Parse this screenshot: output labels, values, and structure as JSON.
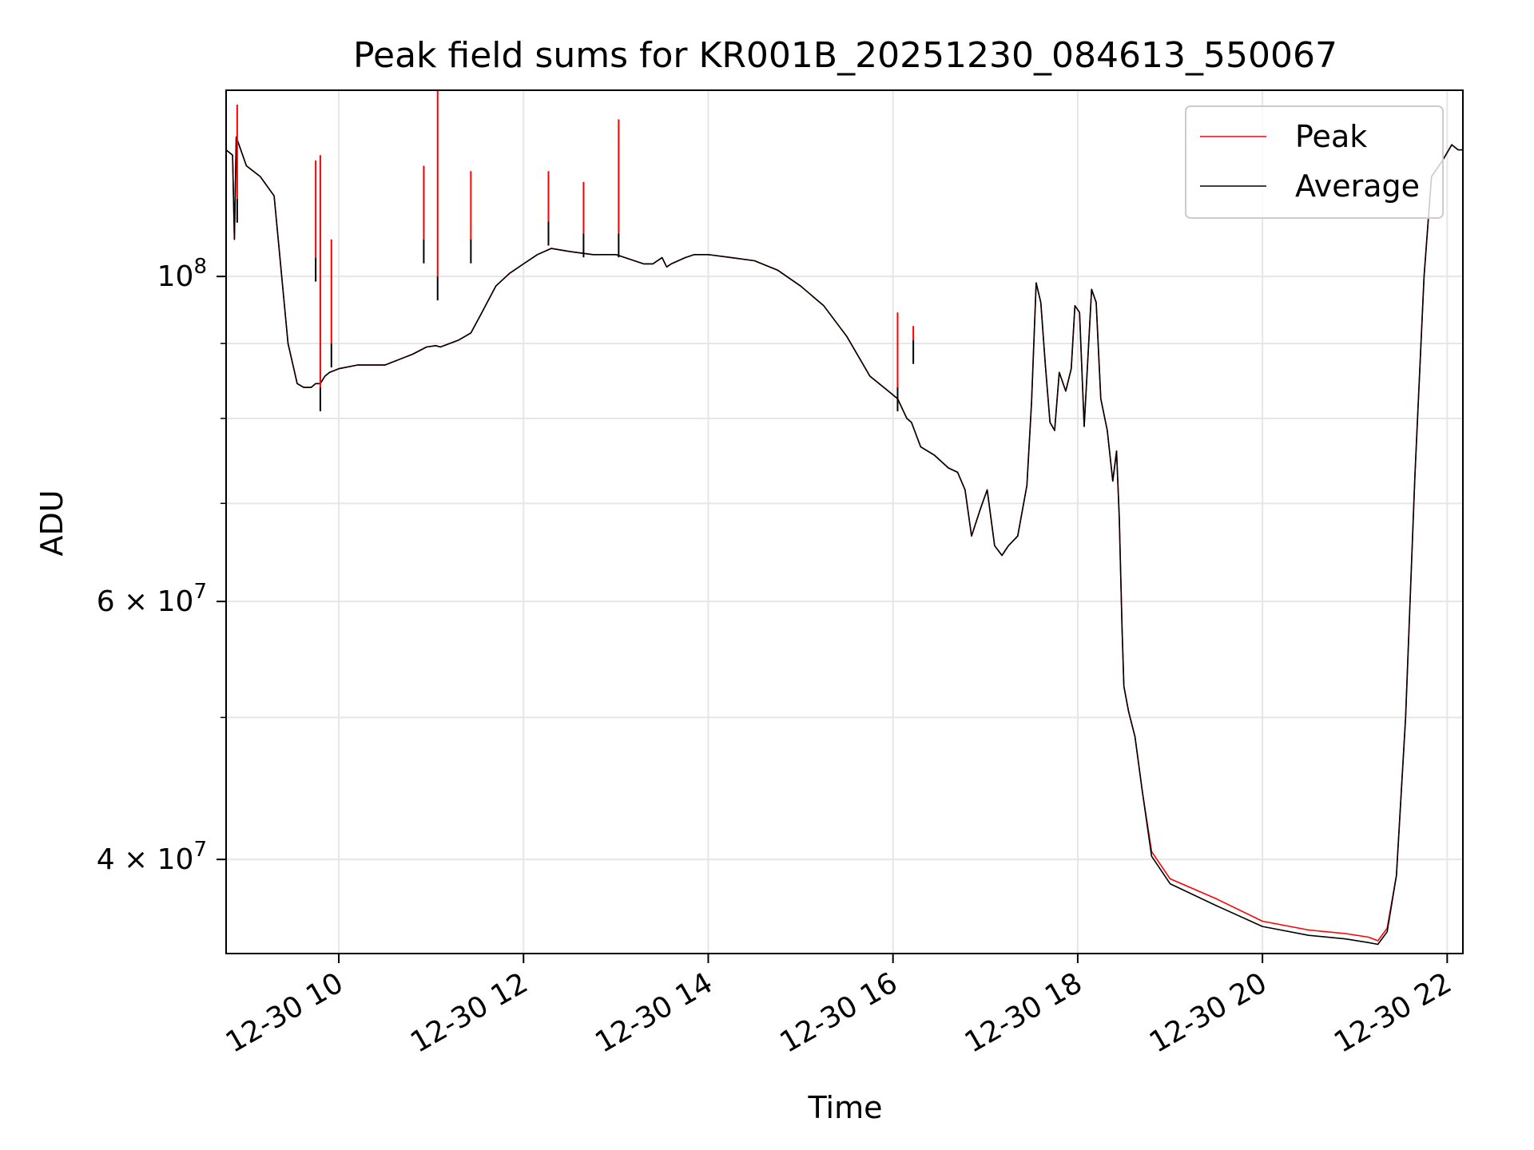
{
  "chart_data": {
    "type": "line",
    "title": "Peak field sums for KR001B_20251230_084613_550067",
    "xlabel": "Time",
    "ylabel": "ADU",
    "yscale": "log",
    "xlim_hours": [
      8.78,
      22.17
    ],
    "ylim": [
      34500000,
      134000000
    ],
    "grid": true,
    "legend_position": "upper right",
    "x_ticks": [
      {
        "hour": 10,
        "label": "12-30 10"
      },
      {
        "hour": 12,
        "label": "12-30 12"
      },
      {
        "hour": 14,
        "label": "12-30 14"
      },
      {
        "hour": 16,
        "label": "12-30 16"
      },
      {
        "hour": 18,
        "label": "12-30 18"
      },
      {
        "hour": 20,
        "label": "12-30 20"
      },
      {
        "hour": 22,
        "label": "12-30 22"
      }
    ],
    "y_ticks": [
      {
        "value": 40000000,
        "mantissa": "4",
        "exponent": "7"
      },
      {
        "value": 60000000,
        "mantissa": "6",
        "exponent": "7"
      },
      {
        "value": 100000000,
        "mantissa": "",
        "exponent": "8"
      }
    ],
    "y_minor_ticks": [
      50000000,
      70000000,
      80000000,
      90000000
    ],
    "series": [
      {
        "name": "Peak",
        "color": "#ff0000",
        "x": [
          8.78,
          8.85,
          8.87,
          8.89,
          8.91,
          9.0,
          9.15,
          9.3,
          9.45,
          9.55,
          9.62,
          9.7,
          9.75,
          9.8,
          9.85,
          9.9,
          10.0,
          10.2,
          10.5,
          10.8,
          10.95,
          11.05,
          11.1,
          11.2,
          11.3,
          11.43,
          11.55,
          11.7,
          11.85,
          12.0,
          12.15,
          12.3,
          12.5,
          12.75,
          13.0,
          13.1,
          13.2,
          13.3,
          13.4,
          13.5,
          13.55,
          13.6,
          13.75,
          13.85,
          14.0,
          14.25,
          14.5,
          14.75,
          15.0,
          15.25,
          15.5,
          15.75,
          15.95,
          16.05,
          16.15,
          16.2,
          16.3,
          16.45,
          16.6,
          16.7,
          16.78,
          16.85,
          16.95,
          17.02,
          17.1,
          17.18,
          17.25,
          17.35,
          17.45,
          17.5,
          17.55,
          17.6,
          17.65,
          17.7,
          17.75,
          17.8,
          17.87,
          17.93,
          17.97,
          18.02,
          18.07,
          18.15,
          18.2,
          18.25,
          18.32,
          18.38,
          18.42,
          18.45,
          18.48,
          18.5,
          18.55,
          18.62,
          18.7,
          18.8,
          19.0,
          19.5,
          20.0,
          20.5,
          20.9,
          21.15,
          21.25,
          21.35,
          21.45,
          21.55,
          21.65,
          21.75,
          21.83,
          21.95,
          22.05,
          22.12,
          22.17
        ],
        "y": [
          122000000,
          121000000,
          106000000,
          124500000,
          123500000,
          119000000,
          117000000,
          113500000,
          90000000,
          84500000,
          84000000,
          84000000,
          84500000,
          84500000,
          85500000,
          86000000,
          86500000,
          87000000,
          87000000,
          88500000,
          89500000,
          89700000,
          89500000,
          90000000,
          90500000,
          91500000,
          94500000,
          98500000,
          100500000,
          102000000,
          103500000,
          104500000,
          104000000,
          103500000,
          103500000,
          103000000,
          102500000,
          102000000,
          102000000,
          103000000,
          101500000,
          102000000,
          103000000,
          103500000,
          103500000,
          103000000,
          102500000,
          101000000,
          98500000,
          95500000,
          91000000,
          85500000,
          83500000,
          82500000,
          80000000,
          79500000,
          76500000,
          75500000,
          74000000,
          73500000,
          71500000,
          66500000,
          69500000,
          71500000,
          65500000,
          64500000,
          65500000,
          66500000,
          72000000,
          82000000,
          99000000,
          96000000,
          87000000,
          79500000,
          78500000,
          86000000,
          83500000,
          86500000,
          95500000,
          94500000,
          79000000,
          98000000,
          96000000,
          82500000,
          78500000,
          72500000,
          76000000,
          68500000,
          57500000,
          52500000,
          50500000,
          48500000,
          44500000,
          40500000,
          38800000,
          37600000,
          36300000,
          35800000,
          35600000,
          35400000,
          35200000,
          35900000,
          39000000,
          50000000,
          73000000,
          100000000,
          117000000,
          120000000,
          123000000,
          122000000,
          122000000
        ]
      },
      {
        "name": "Average",
        "color": "#000000",
        "x": [
          8.78,
          8.85,
          8.87,
          8.89,
          8.91,
          9.0,
          9.15,
          9.3,
          9.45,
          9.55,
          9.62,
          9.7,
          9.75,
          9.8,
          9.85,
          9.9,
          10.0,
          10.2,
          10.5,
          10.8,
          10.95,
          11.05,
          11.1,
          11.2,
          11.3,
          11.43,
          11.55,
          11.7,
          11.85,
          12.0,
          12.15,
          12.3,
          12.5,
          12.75,
          13.0,
          13.1,
          13.2,
          13.3,
          13.4,
          13.5,
          13.55,
          13.6,
          13.75,
          13.85,
          14.0,
          14.25,
          14.5,
          14.75,
          15.0,
          15.25,
          15.5,
          15.75,
          15.95,
          16.05,
          16.15,
          16.2,
          16.3,
          16.45,
          16.6,
          16.7,
          16.78,
          16.85,
          16.95,
          17.02,
          17.1,
          17.18,
          17.25,
          17.35,
          17.45,
          17.5,
          17.55,
          17.6,
          17.65,
          17.7,
          17.75,
          17.8,
          17.87,
          17.93,
          17.97,
          18.02,
          18.07,
          18.15,
          18.2,
          18.25,
          18.32,
          18.38,
          18.42,
          18.45,
          18.48,
          18.5,
          18.55,
          18.62,
          18.7,
          18.8,
          19.0,
          19.5,
          20.0,
          20.5,
          20.9,
          21.15,
          21.25,
          21.35,
          21.45,
          21.55,
          21.65,
          21.75,
          21.83,
          21.95,
          22.05,
          22.12,
          22.17
        ],
        "y": [
          122000000,
          121000000,
          106000000,
          124500000,
          123500000,
          119000000,
          117000000,
          113500000,
          90000000,
          84500000,
          84000000,
          84000000,
          84500000,
          84500000,
          85500000,
          86000000,
          86500000,
          87000000,
          87000000,
          88500000,
          89500000,
          89700000,
          89500000,
          90000000,
          90500000,
          91500000,
          94500000,
          98500000,
          100500000,
          102000000,
          103500000,
          104500000,
          104000000,
          103500000,
          103500000,
          103000000,
          102500000,
          102000000,
          102000000,
          103000000,
          101500000,
          102000000,
          103000000,
          103500000,
          103500000,
          103000000,
          102500000,
          101000000,
          98500000,
          95500000,
          91000000,
          85500000,
          83500000,
          82500000,
          80000000,
          79500000,
          76500000,
          75500000,
          74000000,
          73500000,
          71500000,
          66500000,
          69500000,
          71500000,
          65500000,
          64500000,
          65500000,
          66500000,
          72000000,
          82000000,
          99000000,
          96000000,
          87000000,
          79500000,
          78500000,
          86000000,
          83500000,
          86500000,
          95500000,
          94500000,
          79000000,
          98000000,
          96000000,
          82500000,
          78500000,
          72500000,
          76000000,
          68500000,
          57500000,
          52500000,
          50500000,
          48500000,
          44500000,
          40200000,
          38500000,
          37200000,
          36000000,
          35500000,
          35300000,
          35100000,
          35000000,
          35700000,
          39000000,
          50000000,
          73000000,
          100000000,
          117000000,
          120000000,
          123000000,
          122000000,
          122000000
        ]
      }
    ],
    "spikes": [
      {
        "x": 8.9,
        "peak": 131000000,
        "average": 113000000
      },
      {
        "x": 9.75,
        "peak": 120000000,
        "average": 103000000
      },
      {
        "x": 9.8,
        "peak": 121000000,
        "average": 84000000
      },
      {
        "x": 9.92,
        "peak": 106000000,
        "average": 90000000
      },
      {
        "x": 10.92,
        "peak": 119000000,
        "average": 106000000
      },
      {
        "x": 11.07,
        "peak": 134000000,
        "average": 100000000
      },
      {
        "x": 11.43,
        "peak": 118000000,
        "average": 106000000
      },
      {
        "x": 12.27,
        "peak": 118000000,
        "average": 109000000
      },
      {
        "x": 12.65,
        "peak": 116000000,
        "average": 107000000
      },
      {
        "x": 13.03,
        "peak": 128000000,
        "average": 107000000
      },
      {
        "x": 16.05,
        "peak": 94500000,
        "average": 84000000
      },
      {
        "x": 16.22,
        "peak": 92500000,
        "average": 90500000
      }
    ]
  }
}
